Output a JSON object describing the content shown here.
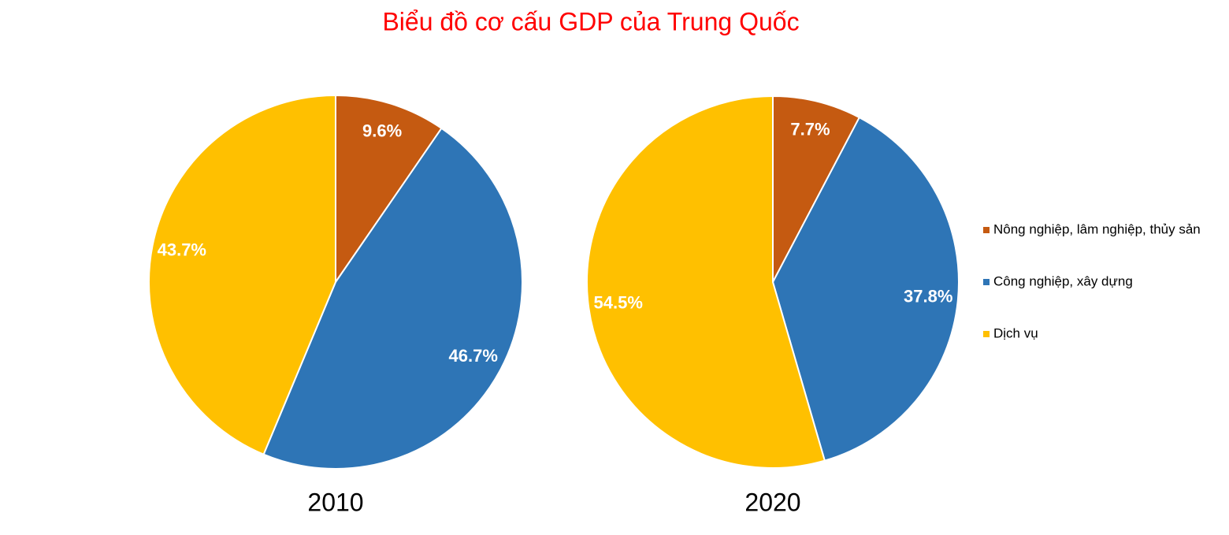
{
  "title": "Biểu đồ cơ cấu GDP của Trung Quốc",
  "legend": {
    "categories": [
      "Nông nghiệp, lâm nghiệp, thủy sản",
      "Công nghiệp, xây dựng",
      "Dịch vụ"
    ],
    "colors": [
      "#c55a11",
      "#2e75b6",
      "#ffc000"
    ],
    "position": "right"
  },
  "chart_data": [
    {
      "type": "pie",
      "label": "2010",
      "values": [
        9.6,
        46.7,
        43.7
      ],
      "value_labels": [
        "9.6%",
        "46.7%",
        "43.7%"
      ]
    },
    {
      "type": "pie",
      "label": "2020",
      "values": [
        7.7,
        37.8,
        54.5
      ],
      "value_labels": [
        "7.7%",
        "37.8%",
        "54.5%"
      ]
    }
  ]
}
